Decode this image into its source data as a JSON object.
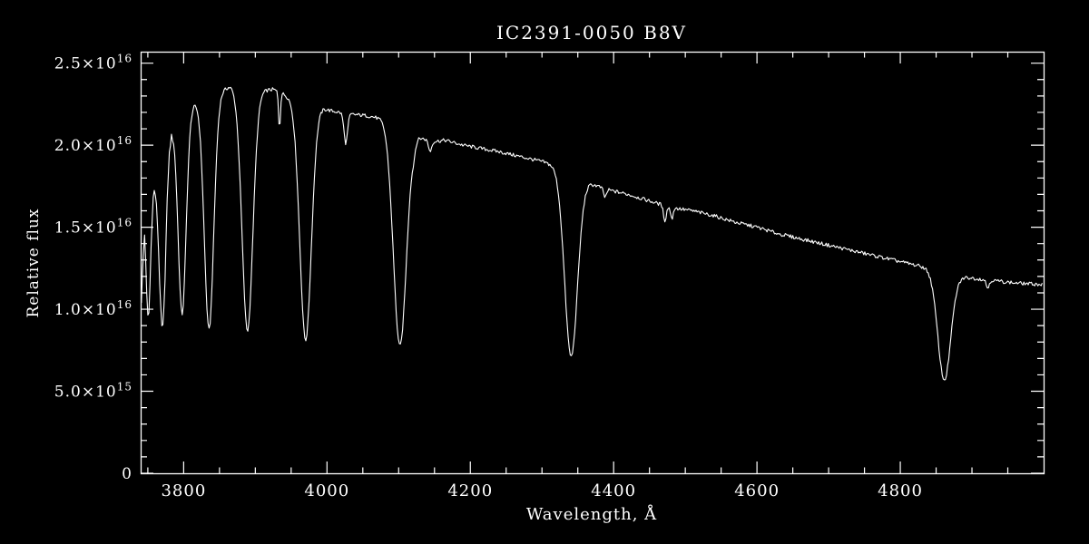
{
  "chart_data": {
    "type": "line",
    "title": "IC2391-0050  B8V",
    "xlabel": "Wavelength, Å",
    "ylabel": "Relative flux",
    "xlim": [
      3740,
      5000
    ],
    "ylim": [
      0,
      2.57e+16
    ],
    "background_color": "#000000",
    "line_color": "#ffffff",
    "axis_color": "#ffffff",
    "x_ticks": [
      {
        "value": 3800,
        "label": "3800"
      },
      {
        "value": 4000,
        "label": "4000"
      },
      {
        "value": 4200,
        "label": "4200"
      },
      {
        "value": 4400,
        "label": "4400"
      },
      {
        "value": 4600,
        "label": "4600"
      },
      {
        "value": 4800,
        "label": "4800"
      }
    ],
    "x_minor_step": 50,
    "y_ticks": [
      {
        "value": 0,
        "mantissa": "0",
        "exponent": ""
      },
      {
        "value": 5000000000000000.0,
        "mantissa": "5.0×10",
        "exponent": "15"
      },
      {
        "value": 1e+16,
        "mantissa": "1.0×10",
        "exponent": "16"
      },
      {
        "value": 1.5e+16,
        "mantissa": "1.5×10",
        "exponent": "16"
      },
      {
        "value": 2e+16,
        "mantissa": "2.0×10",
        "exponent": "16"
      },
      {
        "value": 2.5e+16,
        "mantissa": "2.5×10",
        "exponent": "16"
      }
    ],
    "y_minor_step": 1000000000000000.0,
    "spectrum_model": {
      "flux_unit": 1e+16,
      "sample_step": 1.5,
      "noise_amplitude": 0.011,
      "continuum": [
        [
          3740,
          0.95
        ],
        [
          3743,
          1.35
        ],
        [
          3746,
          1.9
        ],
        [
          3752,
          1.78
        ],
        [
          3762,
          1.8
        ],
        [
          3775,
          2.02
        ],
        [
          3788,
          2.15
        ],
        [
          3805,
          2.22
        ],
        [
          3820,
          2.27
        ],
        [
          3845,
          2.31
        ],
        [
          3865,
          2.36
        ],
        [
          3885,
          2.34
        ],
        [
          3905,
          2.33
        ],
        [
          3925,
          2.34
        ],
        [
          3945,
          2.3
        ],
        [
          3965,
          2.27
        ],
        [
          3985,
          2.24
        ],
        [
          4005,
          2.21
        ],
        [
          4030,
          2.19
        ],
        [
          4055,
          2.18
        ],
        [
          4080,
          2.16
        ],
        [
          4105,
          2.12
        ],
        [
          4125,
          2.06
        ],
        [
          4145,
          2.02
        ],
        [
          4165,
          2.03
        ],
        [
          4190,
          2.0
        ],
        [
          4215,
          1.98
        ],
        [
          4240,
          1.96
        ],
        [
          4270,
          1.93
        ],
        [
          4300,
          1.9
        ],
        [
          4330,
          1.86
        ],
        [
          4360,
          1.78
        ],
        [
          4390,
          1.73
        ],
        [
          4420,
          1.7
        ],
        [
          4450,
          1.66
        ],
        [
          4480,
          1.62
        ],
        [
          4510,
          1.6
        ],
        [
          4540,
          1.57
        ],
        [
          4570,
          1.53
        ],
        [
          4600,
          1.5
        ],
        [
          4630,
          1.46
        ],
        [
          4660,
          1.43
        ],
        [
          4690,
          1.4
        ],
        [
          4720,
          1.37
        ],
        [
          4750,
          1.34
        ],
        [
          4780,
          1.31
        ],
        [
          4810,
          1.28
        ],
        [
          4840,
          1.25
        ],
        [
          4861,
          1.23
        ],
        [
          4880,
          1.2
        ],
        [
          4900,
          1.19
        ],
        [
          4920,
          1.18
        ],
        [
          4940,
          1.17
        ],
        [
          4960,
          1.16
        ],
        [
          5000,
          1.15
        ]
      ],
      "absorption_lines": [
        {
          "name": "H12",
          "center": 3750.2,
          "depth": 0.87,
          "sigma": 3.5
        },
        {
          "name": "H11",
          "center": 3770.6,
          "depth": 1.07,
          "sigma": 4.5
        },
        {
          "name": "H10",
          "center": 3797.9,
          "depth": 1.22,
          "sigma": 5.5
        },
        {
          "name": "H9",
          "center": 3835.4,
          "depth": 1.42,
          "sigma": 6.5
        },
        {
          "name": "H8",
          "center": 3889.0,
          "depth": 1.47,
          "sigma": 7.5
        },
        {
          "name": "Ca II K",
          "center": 3933.7,
          "depth": 0.22,
          "sigma": 1.3
        },
        {
          "name": "H-epsilon",
          "center": 3970.1,
          "depth": 1.45,
          "sigma": 8
        },
        {
          "name": "He I 4026",
          "center": 4026.2,
          "depth": 0.18,
          "sigma": 2.5
        },
        {
          "name": "H-delta",
          "center": 4101.7,
          "depth": 1.35,
          "sigma": 9
        },
        {
          "name": "He I 4121",
          "center": 4120.8,
          "depth": 0.05,
          "sigma": 2
        },
        {
          "name": "He I 4144",
          "center": 4143.8,
          "depth": 0.06,
          "sigma": 2
        },
        {
          "name": "H-gamma",
          "center": 4340.5,
          "depth": 1.12,
          "sigma": 9
        },
        {
          "name": "He I 4388",
          "center": 4387.9,
          "depth": 0.05,
          "sigma": 2
        },
        {
          "name": "He I 4471",
          "center": 4471.5,
          "depth": 0.09,
          "sigma": 2
        },
        {
          "name": "Mg II 4481",
          "center": 4481.2,
          "depth": 0.07,
          "sigma": 1.6
        },
        {
          "name": "H-beta",
          "center": 4861.3,
          "depth": 0.66,
          "sigma": 9
        },
        {
          "name": "He I 4922",
          "center": 4921.9,
          "depth": 0.05,
          "sigma": 2
        }
      ]
    }
  }
}
